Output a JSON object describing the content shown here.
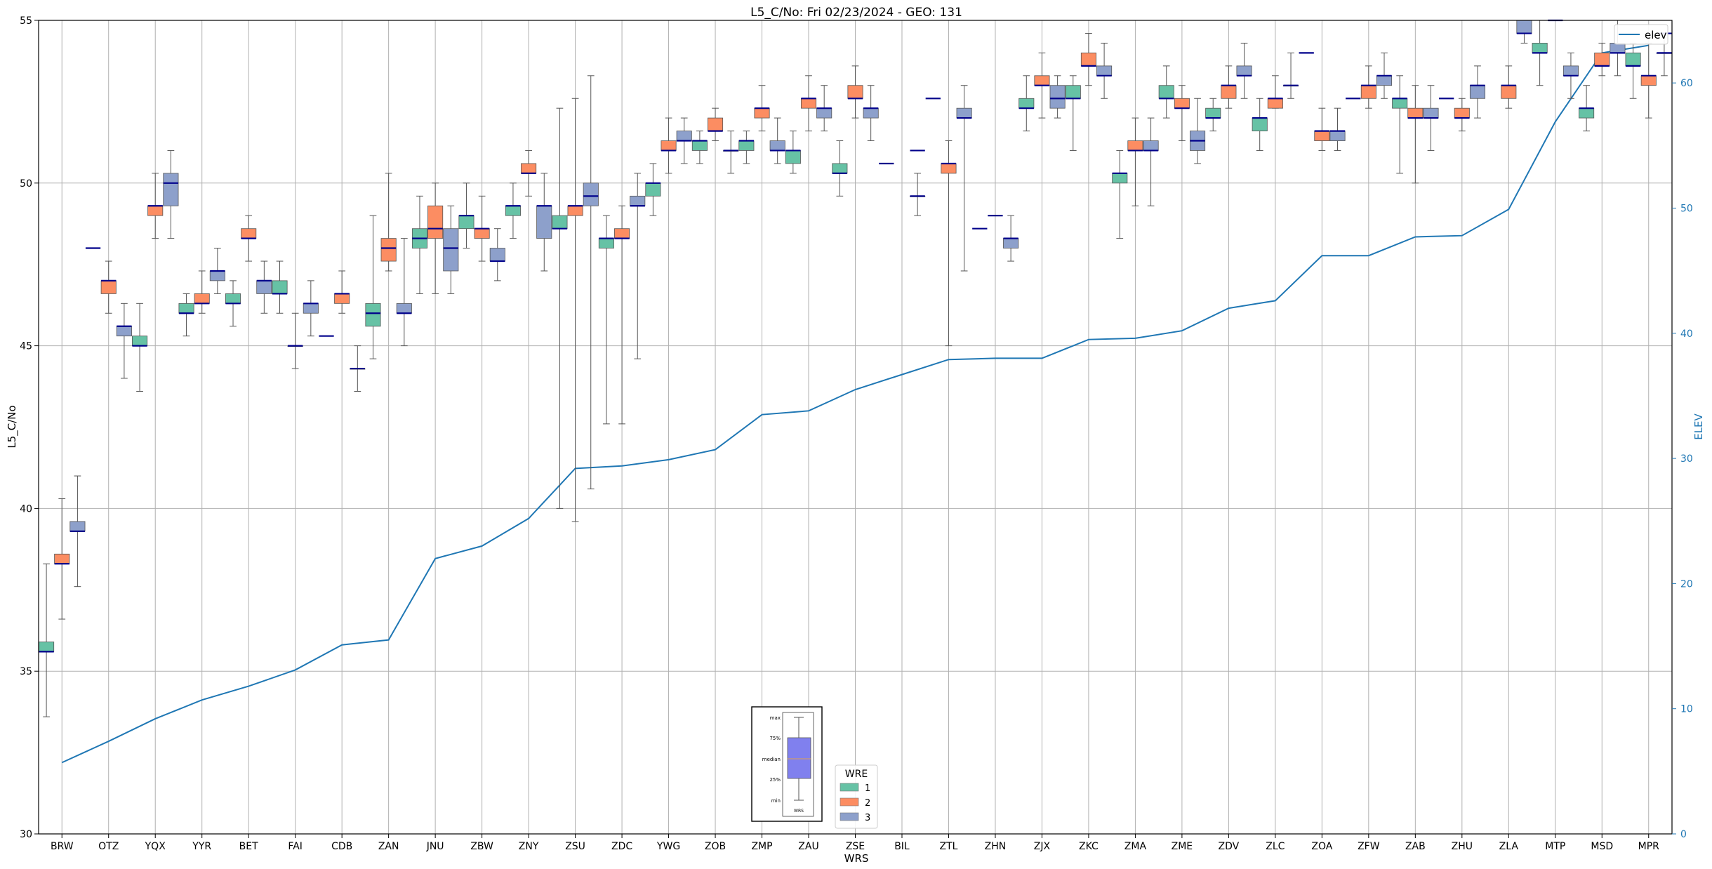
{
  "chart_data": {
    "type": "box",
    "title": "L5_C/No: Fri 02/23/2024 - GEO: 131",
    "xlabel": "WRS",
    "ylabel": "L5_C/No",
    "y2label": "ELEV",
    "ylim": [
      30,
      55
    ],
    "y2lim": [
      0,
      65
    ],
    "yticks": [
      30,
      35,
      40,
      45,
      50,
      55
    ],
    "y2ticks": [
      0,
      10,
      20,
      30,
      40,
      50,
      60
    ],
    "grid": true,
    "categories": [
      "BRW",
      "OTZ",
      "YQX",
      "YYR",
      "BET",
      "FAI",
      "CDB",
      "ZAN",
      "JNU",
      "ZBW",
      "ZNY",
      "ZSU",
      "ZDC",
      "YWG",
      "ZOB",
      "ZMP",
      "ZAU",
      "ZSE",
      "BIL",
      "ZTL",
      "ZHN",
      "ZJX",
      "ZKC",
      "ZMA",
      "ZME",
      "ZDV",
      "ZLC",
      "ZOA",
      "ZFW",
      "ZAB",
      "ZHU",
      "ZLA",
      "MTP",
      "MSD",
      "MPR"
    ],
    "wre_colors": {
      "1": "#66c2a5",
      "2": "#fc8d62",
      "3": "#8da0cb"
    },
    "median_color": "#00008b",
    "elev_color": "#1f77b4",
    "series": [
      {
        "name": "1",
        "boxes": [
          {
            "cat": "BRW",
            "min": 33.6,
            "q1": 35.6,
            "median": 35.6,
            "q3": 35.9,
            "max": 38.3
          },
          {
            "cat": "YQX",
            "min": 43.6,
            "q1": 45.0,
            "median": 45.0,
            "q3": 45.3,
            "max": 46.3
          },
          {
            "cat": "YYR",
            "min": 45.3,
            "q1": 46.0,
            "median": 46.0,
            "q3": 46.3,
            "max": 46.6
          },
          {
            "cat": "BET",
            "min": 45.6,
            "q1": 46.3,
            "median": 46.3,
            "q3": 46.6,
            "max": 47.0
          },
          {
            "cat": "FAI",
            "min": 46.0,
            "q1": 46.6,
            "median": 46.6,
            "q3": 47.0,
            "max": 47.6
          },
          {
            "cat": "ZAN",
            "min": 44.6,
            "q1": 45.6,
            "median": 46.0,
            "q3": 46.3,
            "max": 49.0
          },
          {
            "cat": "JNU",
            "min": 46.6,
            "q1": 48.0,
            "median": 48.3,
            "q3": 48.6,
            "max": 49.6
          },
          {
            "cat": "ZBW",
            "min": 48.0,
            "q1": 48.6,
            "median": 49.0,
            "q3": 49.0,
            "max": 50.0
          },
          {
            "cat": "ZNY",
            "min": 48.3,
            "q1": 49.0,
            "median": 49.3,
            "q3": 49.3,
            "max": 50.0
          },
          {
            "cat": "ZSU",
            "min": 40.0,
            "q1": 48.6,
            "median": 48.6,
            "q3": 49.0,
            "max": 52.3
          },
          {
            "cat": "ZDC",
            "min": 42.6,
            "q1": 48.0,
            "median": 48.3,
            "q3": 48.3,
            "max": 49.0
          },
          {
            "cat": "YWG",
            "min": 49.0,
            "q1": 49.6,
            "median": 50.0,
            "q3": 50.0,
            "max": 50.6
          },
          {
            "cat": "ZOB",
            "min": 50.6,
            "q1": 51.0,
            "median": 51.3,
            "q3": 51.3,
            "max": 51.6
          },
          {
            "cat": "ZMP",
            "min": 50.6,
            "q1": 51.0,
            "median": 51.3,
            "q3": 51.3,
            "max": 51.6
          },
          {
            "cat": "ZAU",
            "min": 50.3,
            "q1": 50.6,
            "median": 51.0,
            "q3": 51.0,
            "max": 51.6
          },
          {
            "cat": "ZSE",
            "min": 49.6,
            "q1": 50.3,
            "median": 50.3,
            "q3": 50.6,
            "max": 51.3
          },
          {
            "cat": "ZJX",
            "min": 51.6,
            "q1": 52.3,
            "median": 52.3,
            "q3": 52.6,
            "max": 53.3
          },
          {
            "cat": "ZKC",
            "min": 51.0,
            "q1": 52.6,
            "median": 52.6,
            "q3": 53.0,
            "max": 53.3
          },
          {
            "cat": "ZMA",
            "min": 48.3,
            "q1": 50.0,
            "median": 50.3,
            "q3": 50.3,
            "max": 51.0
          },
          {
            "cat": "ZME",
            "min": 52.0,
            "q1": 52.6,
            "median": 52.6,
            "q3": 53.0,
            "max": 53.6
          },
          {
            "cat": "ZDV",
            "min": 51.6,
            "q1": 52.0,
            "median": 52.0,
            "q3": 52.3,
            "max": 52.6
          },
          {
            "cat": "ZLC",
            "min": 51.0,
            "q1": 51.6,
            "median": 52.0,
            "q3": 52.0,
            "max": 52.6
          },
          {
            "cat": "ZAB",
            "min": 50.3,
            "q1": 52.3,
            "median": 52.6,
            "q3": 52.6,
            "max": 53.3
          },
          {
            "cat": "MTP",
            "min": 53.0,
            "q1": 54.0,
            "median": 54.0,
            "q3": 54.3,
            "max": 55.0
          },
          {
            "cat": "MSD",
            "min": 51.6,
            "q1": 52.0,
            "median": 52.3,
            "q3": 52.3,
            "max": 53.0
          },
          {
            "cat": "MPR",
            "min": 52.6,
            "q1": 53.6,
            "median": 53.6,
            "q3": 54.0,
            "max": 54.3
          }
        ]
      },
      {
        "name": "2",
        "boxes": [
          {
            "cat": "BRW",
            "min": 36.6,
            "q1": 38.3,
            "median": 38.3,
            "q3": 38.6,
            "max": 40.3
          },
          {
            "cat": "OTZ",
            "min": 46.0,
            "q1": 46.6,
            "median": 47.0,
            "q3": 47.0,
            "max": 47.6
          },
          {
            "cat": "YQX",
            "min": 48.3,
            "q1": 49.0,
            "median": 49.3,
            "q3": 49.3,
            "max": 50.3
          },
          {
            "cat": "YYR",
            "min": 46.0,
            "q1": 46.3,
            "median": 46.3,
            "q3": 46.6,
            "max": 47.3
          },
          {
            "cat": "BET",
            "min": 47.6,
            "q1": 48.3,
            "median": 48.3,
            "q3": 48.6,
            "max": 49.0
          },
          {
            "cat": "FAI",
            "min": 44.3,
            "q1": 45.0,
            "median": 45.0,
            "q3": 45.0,
            "max": 46.0
          },
          {
            "cat": "CDB",
            "min": 46.0,
            "q1": 46.3,
            "median": 46.6,
            "q3": 46.6,
            "max": 47.3
          },
          {
            "cat": "ZAN",
            "min": 47.3,
            "q1": 47.6,
            "median": 48.0,
            "q3": 48.3,
            "max": 50.3
          },
          {
            "cat": "JNU",
            "min": 46.6,
            "q1": 48.3,
            "median": 48.6,
            "q3": 49.3,
            "max": 50.0
          },
          {
            "cat": "ZBW",
            "min": 47.6,
            "q1": 48.3,
            "median": 48.6,
            "q3": 48.6,
            "max": 49.6
          },
          {
            "cat": "ZNY",
            "min": 49.6,
            "q1": 50.3,
            "median": 50.3,
            "q3": 50.6,
            "max": 51.0
          },
          {
            "cat": "ZSU",
            "min": 39.6,
            "q1": 49.0,
            "median": 49.3,
            "q3": 49.3,
            "max": 52.6
          },
          {
            "cat": "ZDC",
            "min": 42.6,
            "q1": 48.3,
            "median": 48.3,
            "q3": 48.6,
            "max": 49.3
          },
          {
            "cat": "YWG",
            "min": 50.3,
            "q1": 51.0,
            "median": 51.0,
            "q3": 51.3,
            "max": 52.0
          },
          {
            "cat": "ZOB",
            "min": 51.3,
            "q1": 51.6,
            "median": 51.6,
            "q3": 52.0,
            "max": 52.3
          },
          {
            "cat": "ZMP",
            "min": 51.6,
            "q1": 52.0,
            "median": 52.3,
            "q3": 52.3,
            "max": 53.0
          },
          {
            "cat": "ZAU",
            "min": 51.6,
            "q1": 52.3,
            "median": 52.6,
            "q3": 52.6,
            "max": 53.3
          },
          {
            "cat": "ZSE",
            "min": 52.0,
            "q1": 52.6,
            "median": 52.6,
            "q3": 53.0,
            "max": 53.6
          },
          {
            "cat": "ZTL",
            "min": 45.0,
            "q1": 50.3,
            "median": 50.6,
            "q3": 50.6,
            "max": 51.3
          },
          {
            "cat": "ZJX",
            "min": 52.0,
            "q1": 53.0,
            "median": 53.0,
            "q3": 53.3,
            "max": 54.0
          },
          {
            "cat": "ZKC",
            "min": 53.0,
            "q1": 53.6,
            "median": 53.6,
            "q3": 54.0,
            "max": 54.6
          },
          {
            "cat": "ZMA",
            "min": 49.3,
            "q1": 51.0,
            "median": 51.0,
            "q3": 51.3,
            "max": 52.0
          },
          {
            "cat": "ZME",
            "min": 51.3,
            "q1": 52.3,
            "median": 52.3,
            "q3": 52.6,
            "max": 53.0
          },
          {
            "cat": "ZDV",
            "min": 52.3,
            "q1": 52.6,
            "median": 53.0,
            "q3": 53.0,
            "max": 53.6
          },
          {
            "cat": "ZLC",
            "min": 52.3,
            "q1": 52.3,
            "median": 52.6,
            "q3": 52.6,
            "max": 53.3
          },
          {
            "cat": "ZOA",
            "min": 51.0,
            "q1": 51.3,
            "median": 51.6,
            "q3": 51.6,
            "max": 52.3
          },
          {
            "cat": "ZFW",
            "min": 52.3,
            "q1": 52.6,
            "median": 53.0,
            "q3": 53.0,
            "max": 53.6
          },
          {
            "cat": "ZAB",
            "min": 50.0,
            "q1": 52.0,
            "median": 52.0,
            "q3": 52.3,
            "max": 53.0
          },
          {
            "cat": "ZHU",
            "min": 51.6,
            "q1": 52.0,
            "median": 52.0,
            "q3": 52.3,
            "max": 52.6
          },
          {
            "cat": "ZLA",
            "min": 52.3,
            "q1": 52.6,
            "median": 53.0,
            "q3": 53.0,
            "max": 53.6
          },
          {
            "cat": "MSD",
            "min": 53.3,
            "q1": 53.6,
            "median": 53.6,
            "q3": 54.0,
            "max": 54.3
          },
          {
            "cat": "MPR",
            "min": 52.0,
            "q1": 53.0,
            "median": 53.3,
            "q3": 53.3,
            "max": 54.3
          }
        ]
      },
      {
        "name": "3",
        "boxes": [
          {
            "cat": "BRW",
            "min": 37.6,
            "q1": 39.3,
            "median": 39.3,
            "q3": 39.6,
            "max": 41.0
          },
          {
            "cat": "OTZ",
            "min": 44.0,
            "q1": 45.3,
            "median": 45.6,
            "q3": 45.6,
            "max": 46.3
          },
          {
            "cat": "YQX",
            "min": 48.3,
            "q1": 49.3,
            "median": 50.0,
            "q3": 50.3,
            "max": 51.0
          },
          {
            "cat": "YYR",
            "min": 46.6,
            "q1": 47.0,
            "median": 47.3,
            "q3": 47.3,
            "max": 48.0
          },
          {
            "cat": "BET",
            "min": 46.0,
            "q1": 46.6,
            "median": 47.0,
            "q3": 47.0,
            "max": 47.6
          },
          {
            "cat": "FAI",
            "min": 45.3,
            "q1": 46.0,
            "median": 46.3,
            "q3": 46.3,
            "max": 47.0
          },
          {
            "cat": "CDB",
            "min": 43.6,
            "q1": 44.3,
            "median": 44.3,
            "q3": 44.3,
            "max": 45.0
          },
          {
            "cat": "ZAN",
            "min": 45.0,
            "q1": 46.0,
            "median": 46.0,
            "q3": 46.3,
            "max": 48.3
          },
          {
            "cat": "JNU",
            "min": 46.6,
            "q1": 47.3,
            "median": 48.0,
            "q3": 48.6,
            "max": 49.3
          },
          {
            "cat": "ZBW",
            "min": 47.0,
            "q1": 47.6,
            "median": 47.6,
            "q3": 48.0,
            "max": 48.6
          },
          {
            "cat": "ZNY",
            "min": 47.3,
            "q1": 48.3,
            "median": 49.3,
            "q3": 49.3,
            "max": 50.3
          },
          {
            "cat": "ZSU",
            "min": 40.6,
            "q1": 49.3,
            "median": 49.6,
            "q3": 50.0,
            "max": 53.3
          },
          {
            "cat": "ZDC",
            "min": 44.6,
            "q1": 49.3,
            "median": 49.3,
            "q3": 49.6,
            "max": 50.3
          },
          {
            "cat": "YWG",
            "min": 50.6,
            "q1": 51.3,
            "median": 51.3,
            "q3": 51.6,
            "max": 52.0
          },
          {
            "cat": "ZOB",
            "min": 50.3,
            "q1": 51.0,
            "median": 51.0,
            "q3": 51.0,
            "max": 51.6
          },
          {
            "cat": "ZMP",
            "min": 50.6,
            "q1": 51.0,
            "median": 51.0,
            "q3": 51.3,
            "max": 52.0
          },
          {
            "cat": "ZAU",
            "min": 51.6,
            "q1": 52.0,
            "median": 52.3,
            "q3": 52.3,
            "max": 53.0
          },
          {
            "cat": "ZSE",
            "min": 51.3,
            "q1": 52.0,
            "median": 52.3,
            "q3": 52.3,
            "max": 53.0
          },
          {
            "cat": "BIL",
            "min": 49.0,
            "q1": 49.6,
            "median": 49.6,
            "q3": 49.6,
            "max": 50.3
          },
          {
            "cat": "ZTL",
            "min": 47.3,
            "q1": 52.0,
            "median": 52.0,
            "q3": 52.3,
            "max": 53.0
          },
          {
            "cat": "ZHN",
            "min": 47.6,
            "q1": 48.0,
            "median": 48.3,
            "q3": 48.3,
            "max": 49.0
          },
          {
            "cat": "ZJX",
            "min": 52.0,
            "q1": 52.3,
            "median": 52.6,
            "q3": 53.0,
            "max": 53.3
          },
          {
            "cat": "ZKC",
            "min": 52.6,
            "q1": 53.3,
            "median": 53.3,
            "q3": 53.6,
            "max": 54.3
          },
          {
            "cat": "ZMA",
            "min": 49.3,
            "q1": 51.0,
            "median": 51.0,
            "q3": 51.3,
            "max": 52.0
          },
          {
            "cat": "ZME",
            "min": 50.6,
            "q1": 51.0,
            "median": 51.3,
            "q3": 51.6,
            "max": 52.6
          },
          {
            "cat": "ZDV",
            "min": 52.6,
            "q1": 53.3,
            "median": 53.3,
            "q3": 53.6,
            "max": 54.3
          },
          {
            "cat": "ZLC",
            "min": 52.6,
            "q1": 53.0,
            "median": 53.0,
            "q3": 53.0,
            "max": 54.0
          },
          {
            "cat": "ZOA",
            "min": 51.0,
            "q1": 51.3,
            "median": 51.6,
            "q3": 51.6,
            "max": 52.3
          },
          {
            "cat": "ZFW",
            "min": 52.6,
            "q1": 53.0,
            "median": 53.3,
            "q3": 53.3,
            "max": 54.0
          },
          {
            "cat": "ZAB",
            "min": 51.0,
            "q1": 52.0,
            "median": 52.0,
            "q3": 52.3,
            "max": 53.0
          },
          {
            "cat": "ZHU",
            "min": 52.0,
            "q1": 52.6,
            "median": 53.0,
            "q3": 53.0,
            "max": 53.6
          },
          {
            "cat": "ZLA",
            "min": 54.3,
            "q1": 54.6,
            "median": 54.6,
            "q3": 55.0,
            "max": 55.0
          },
          {
            "cat": "MTP",
            "min": 52.6,
            "q1": 53.3,
            "median": 53.3,
            "q3": 53.6,
            "max": 54.0
          },
          {
            "cat": "MSD",
            "min": 53.3,
            "q1": 54.0,
            "median": 54.0,
            "q3": 54.3,
            "max": 55.0
          },
          {
            "cat": "MPR",
            "min": 53.3,
            "q1": 54.0,
            "median": 54.0,
            "q3": 54.0,
            "max": 54.6
          }
        ]
      }
    ],
    "singles": [
      {
        "wre": "1",
        "cat": "OTZ",
        "value": 48.0
      },
      {
        "wre": "1",
        "cat": "CDB",
        "value": 45.3
      },
      {
        "wre": "1",
        "cat": "BIL",
        "value": 50.6
      },
      {
        "wre": "1",
        "cat": "ZTL",
        "value": 52.6
      },
      {
        "wre": "1",
        "cat": "ZHN",
        "value": 48.6
      },
      {
        "wre": "1",
        "cat": "ZOA",
        "value": 54.0
      },
      {
        "wre": "1",
        "cat": "ZFW",
        "value": 52.6
      },
      {
        "wre": "1",
        "cat": "ZHU",
        "value": 52.6
      },
      {
        "wre": "2",
        "cat": "ZHN",
        "value": 49.0
      },
      {
        "wre": "2",
        "cat": "MTP",
        "value": 55.0
      },
      {
        "wre": "3",
        "cat": "BIL",
        "value": 51.0
      },
      {
        "wre": "3",
        "cat": "MPR",
        "value": 54.6
      }
    ],
    "elev": {
      "name": "elev",
      "values": [
        5.7,
        7.4,
        9.2,
        10.7,
        11.8,
        13.1,
        15.1,
        15.5,
        22.0,
        23.0,
        25.2,
        29.2,
        29.4,
        29.9,
        30.7,
        33.5,
        33.8,
        35.5,
        36.7,
        37.9,
        38.0,
        38.0,
        39.5,
        39.6,
        40.2,
        42.0,
        42.6,
        46.2,
        46.2,
        47.7,
        47.8,
        49.9,
        56.9,
        62.4,
        63.0
      ]
    },
    "legend_elev": {
      "label": "elev",
      "position": "top-right"
    },
    "legend_wre": {
      "title": "WRE",
      "entries": [
        "1",
        "2",
        "3"
      ],
      "position": "bottom-center"
    },
    "key_box": {
      "labels": [
        "max",
        "75%",
        "median",
        "25%",
        "min"
      ],
      "xlabel": "WRS",
      "fill": "#8080ee"
    }
  }
}
